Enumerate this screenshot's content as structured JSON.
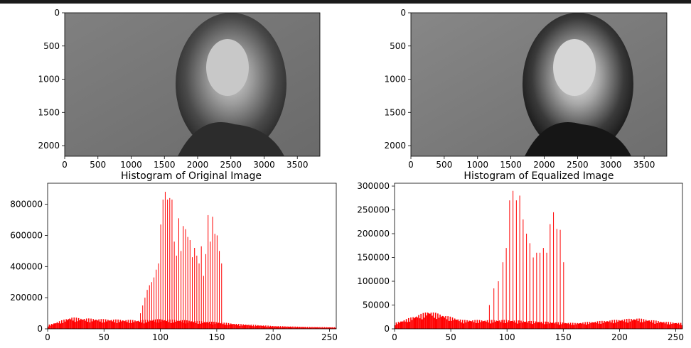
{
  "chart_data": [
    {
      "type": "image",
      "subplot": "original-image",
      "title": "",
      "xlim": [
        0,
        3840
      ],
      "ylim": [
        2160,
        0
      ],
      "xticks": [
        0,
        500,
        1000,
        1500,
        2000,
        2500,
        3000,
        3500
      ],
      "yticks": [
        0,
        500,
        1000,
        1500,
        2000
      ],
      "colormap": "gray"
    },
    {
      "type": "image",
      "subplot": "equalized-image",
      "title": "",
      "xlim": [
        0,
        3840
      ],
      "ylim": [
        2160,
        0
      ],
      "xticks": [
        0,
        500,
        1000,
        1500,
        2000,
        2500,
        3000,
        3500
      ],
      "yticks": [
        0,
        500,
        1000,
        1500,
        2000
      ],
      "colormap": "gray"
    },
    {
      "type": "bar",
      "subplot": "original-histogram",
      "title": "Histogram of Original Image",
      "xlabel": "",
      "ylabel": "",
      "xlim": [
        0,
        256
      ],
      "ylim": [
        0,
        935000
      ],
      "xticks": [
        0,
        50,
        100,
        150,
        200,
        250
      ],
      "yticks": [
        0,
        200000,
        400000,
        600000,
        800000
      ],
      "color": "#ff0000",
      "peaks": [
        {
          "x": 82,
          "y": 100000
        },
        {
          "x": 84,
          "y": 150000
        },
        {
          "x": 86,
          "y": 200000
        },
        {
          "x": 88,
          "y": 250000
        },
        {
          "x": 90,
          "y": 280000
        },
        {
          "x": 92,
          "y": 300000
        },
        {
          "x": 94,
          "y": 330000
        },
        {
          "x": 96,
          "y": 380000
        },
        {
          "x": 98,
          "y": 420000
        },
        {
          "x": 100,
          "y": 670000
        },
        {
          "x": 102,
          "y": 830000
        },
        {
          "x": 104,
          "y": 880000
        },
        {
          "x": 106,
          "y": 830000
        },
        {
          "x": 108,
          "y": 840000
        },
        {
          "x": 110,
          "y": 830000
        },
        {
          "x": 112,
          "y": 560000
        },
        {
          "x": 114,
          "y": 470000
        },
        {
          "x": 116,
          "y": 710000
        },
        {
          "x": 118,
          "y": 500000
        },
        {
          "x": 120,
          "y": 660000
        },
        {
          "x": 122,
          "y": 640000
        },
        {
          "x": 124,
          "y": 590000
        },
        {
          "x": 126,
          "y": 570000
        },
        {
          "x": 128,
          "y": 460000
        },
        {
          "x": 130,
          "y": 520000
        },
        {
          "x": 132,
          "y": 470000
        },
        {
          "x": 134,
          "y": 420000
        },
        {
          "x": 136,
          "y": 530000
        },
        {
          "x": 138,
          "y": 340000
        },
        {
          "x": 140,
          "y": 480000
        },
        {
          "x": 142,
          "y": 730000
        },
        {
          "x": 144,
          "y": 560000
        },
        {
          "x": 146,
          "y": 720000
        },
        {
          "x": 148,
          "y": 610000
        },
        {
          "x": 150,
          "y": 600000
        },
        {
          "x": 152,
          "y": 500000
        },
        {
          "x": 154,
          "y": 420000
        }
      ],
      "baseline": [
        {
          "x": 0,
          "y": 20000
        },
        {
          "x": 10,
          "y": 40000
        },
        {
          "x": 20,
          "y": 60000
        },
        {
          "x": 30,
          "y": 55000
        },
        {
          "x": 50,
          "y": 50000
        },
        {
          "x": 80,
          "y": 45000
        },
        {
          "x": 100,
          "y": 50000
        },
        {
          "x": 120,
          "y": 45000
        },
        {
          "x": 150,
          "y": 35000
        },
        {
          "x": 170,
          "y": 25000
        },
        {
          "x": 200,
          "y": 15000
        },
        {
          "x": 230,
          "y": 10000
        },
        {
          "x": 255,
          "y": 8000
        }
      ]
    },
    {
      "type": "bar",
      "subplot": "equalized-histogram",
      "title": "Histogram of Equalized Image",
      "xlabel": "",
      "ylabel": "",
      "xlim": [
        0,
        256
      ],
      "ylim": [
        0,
        306000
      ],
      "xticks": [
        0,
        50,
        100,
        150,
        200,
        250
      ],
      "yticks": [
        0,
        50000,
        100000,
        150000,
        200000,
        250000,
        300000
      ],
      "color": "#ff0000",
      "peaks": [
        {
          "x": 84,
          "y": 50000
        },
        {
          "x": 88,
          "y": 85000
        },
        {
          "x": 92,
          "y": 100000
        },
        {
          "x": 96,
          "y": 140000
        },
        {
          "x": 99,
          "y": 170000
        },
        {
          "x": 102,
          "y": 270000
        },
        {
          "x": 105,
          "y": 290000
        },
        {
          "x": 108,
          "y": 270000
        },
        {
          "x": 111,
          "y": 280000
        },
        {
          "x": 114,
          "y": 230000
        },
        {
          "x": 117,
          "y": 200000
        },
        {
          "x": 120,
          "y": 180000
        },
        {
          "x": 123,
          "y": 150000
        },
        {
          "x": 126,
          "y": 160000
        },
        {
          "x": 129,
          "y": 160000
        },
        {
          "x": 132,
          "y": 170000
        },
        {
          "x": 135,
          "y": 160000
        },
        {
          "x": 138,
          "y": 220000
        },
        {
          "x": 141,
          "y": 245000
        },
        {
          "x": 144,
          "y": 210000
        },
        {
          "x": 147,
          "y": 208000
        },
        {
          "x": 150,
          "y": 140000
        }
      ],
      "baseline": [
        {
          "x": 0,
          "y": 10000
        },
        {
          "x": 30,
          "y": 30000
        },
        {
          "x": 60,
          "y": 15000
        },
        {
          "x": 100,
          "y": 15000
        },
        {
          "x": 160,
          "y": 10000
        },
        {
          "x": 215,
          "y": 18000
        },
        {
          "x": 240,
          "y": 12000
        },
        {
          "x": 255,
          "y": 10000
        }
      ]
    }
  ]
}
